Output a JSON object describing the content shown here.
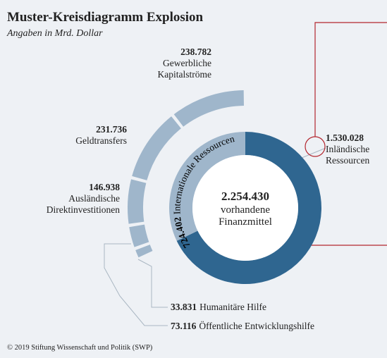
{
  "chart_data": {
    "type": "donut",
    "title": "Muster-Kreisdiagramm Explosion",
    "subtitle": "Angaben in Mrd. Dollar",
    "center": {
      "value": 2254430,
      "value_label": "2.254.430",
      "label": "vorhandene Finanzmittel"
    },
    "categories": [
      "Inländische Ressourcen",
      "Internationale Ressourcen"
    ],
    "values": [
      1530028,
      724402
    ],
    "value_labels": [
      "1.530.028",
      "724.402"
    ],
    "colors": [
      "#2f6690",
      "#9fb6cb"
    ],
    "breakdown": {
      "categories": [
        "Humanitäre Hilfe",
        "Öffentliche Entwicklungshilfe",
        "Ausländische Direktinvestitionen",
        "Geldtransfers",
        "Gewerbliche Kapitalströme"
      ],
      "values": [
        33831,
        73116,
        146938,
        231736,
        238782
      ],
      "value_labels": [
        "33.831",
        "73.116",
        "146.938",
        "231.736",
        "238.782"
      ],
      "color": "#9fb6cb"
    },
    "source": "© 2019 Stiftung Wissenschaft und Politik (SWP)"
  }
}
